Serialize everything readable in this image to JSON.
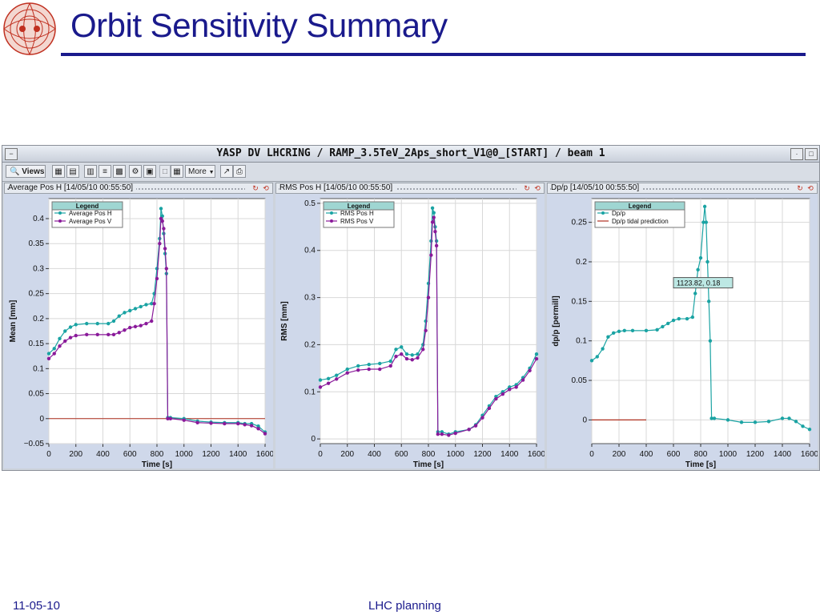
{
  "slide": {
    "title": "Orbit Sensitivity Summary",
    "footer_date": "11-05-10",
    "footer_center": "LHC planning"
  },
  "window": {
    "title": "YASP DV LHCRING / RAMP_3.5TeV_2Aps_short_V1@0_[START] / beam 1",
    "toolbar": {
      "views_label": "Views",
      "more_label": "More"
    }
  },
  "colors": {
    "teal": "#1aa3a3",
    "purple": "#8a1a9a",
    "zero_line": "#b03020",
    "title_blue": "#1a1a8c"
  },
  "chart_data": [
    {
      "type": "scatter",
      "panel_title": "Average Pos H",
      "timestamp": "[14/05/10 00:55:50]",
      "xlabel": "Time [s]",
      "ylabel": "Mean [mm]",
      "xlim": [
        0,
        1600
      ],
      "ylim": [
        -0.05,
        0.44
      ],
      "xticks": [
        0,
        200,
        400,
        600,
        800,
        1000,
        1200,
        1400,
        1600
      ],
      "yticks": [
        -0.05,
        0,
        0.05,
        0.1,
        0.15,
        0.2,
        0.25,
        0.3,
        0.35,
        0.4
      ],
      "ytick_labels": [
        "−0.05",
        "0",
        "0.05",
        "0.1",
        "0.15",
        "0.2",
        "0.25",
        "0.3",
        "0.35",
        "0.4"
      ],
      "legend": {
        "title": "Legend",
        "placement": "top-left"
      },
      "zero_line": true,
      "grid": true,
      "series": [
        {
          "name": "Average Pos H",
          "color": "#1aa3a3",
          "x": [
            0,
            40,
            80,
            120,
            160,
            200,
            280,
            360,
            440,
            480,
            520,
            560,
            600,
            640,
            680,
            720,
            760,
            780,
            800,
            820,
            830,
            840,
            850,
            860,
            870,
            880,
            900,
            1000,
            1100,
            1200,
            1300,
            1400,
            1450,
            1500,
            1550,
            1600
          ],
          "y": [
            0.13,
            0.14,
            0.16,
            0.175,
            0.183,
            0.188,
            0.19,
            0.19,
            0.19,
            0.195,
            0.205,
            0.212,
            0.216,
            0.22,
            0.224,
            0.228,
            0.23,
            0.25,
            0.3,
            0.36,
            0.42,
            0.405,
            0.37,
            0.33,
            0.29,
            0.002,
            0.002,
            0.0,
            -0.005,
            -0.007,
            -0.008,
            -0.008,
            -0.01,
            -0.01,
            -0.015,
            -0.027
          ]
        },
        {
          "name": "Average Pos V",
          "color": "#8a1a9a",
          "x": [
            0,
            40,
            80,
            120,
            160,
            200,
            280,
            360,
            440,
            480,
            520,
            560,
            600,
            640,
            680,
            720,
            760,
            780,
            800,
            820,
            830,
            840,
            850,
            860,
            870,
            880,
            900,
            1000,
            1100,
            1200,
            1300,
            1400,
            1450,
            1500,
            1550,
            1600
          ],
          "y": [
            0.12,
            0.13,
            0.145,
            0.155,
            0.162,
            0.166,
            0.168,
            0.168,
            0.168,
            0.168,
            0.172,
            0.177,
            0.182,
            0.184,
            0.186,
            0.19,
            0.195,
            0.23,
            0.28,
            0.35,
            0.4,
            0.395,
            0.38,
            0.34,
            0.3,
            0.0,
            0.0,
            -0.003,
            -0.008,
            -0.009,
            -0.01,
            -0.01,
            -0.012,
            -0.014,
            -0.02,
            -0.03
          ]
        }
      ]
    },
    {
      "type": "scatter",
      "panel_title": "RMS Pos H",
      "timestamp": "[14/05/10 00:55:50]",
      "xlabel": "Time [s]",
      "ylabel": "RMS [mm]",
      "xlim": [
        0,
        1600
      ],
      "ylim": [
        -0.01,
        0.51
      ],
      "xticks": [
        0,
        200,
        400,
        600,
        800,
        1000,
        1200,
        1400,
        1600
      ],
      "yticks": [
        0,
        0.1,
        0.2,
        0.3,
        0.4,
        0.5
      ],
      "ytick_labels": [
        "0",
        "0.1",
        "0.2",
        "0.3",
        "0.4",
        "0.5"
      ],
      "legend": {
        "title": "Legend",
        "placement": "top-left"
      },
      "zero_line": false,
      "grid": true,
      "series": [
        {
          "name": "RMS Pos H",
          "color": "#1aa3a3",
          "x": [
            0,
            60,
            120,
            200,
            280,
            360,
            440,
            520,
            560,
            600,
            640,
            680,
            720,
            760,
            780,
            800,
            820,
            830,
            840,
            850,
            860,
            870,
            900,
            950,
            1000,
            1100,
            1150,
            1200,
            1250,
            1300,
            1350,
            1400,
            1450,
            1500,
            1550,
            1600
          ],
          "y": [
            0.125,
            0.128,
            0.135,
            0.148,
            0.155,
            0.158,
            0.16,
            0.165,
            0.19,
            0.195,
            0.18,
            0.178,
            0.18,
            0.2,
            0.25,
            0.33,
            0.42,
            0.49,
            0.48,
            0.45,
            0.42,
            0.015,
            0.015,
            0.01,
            0.015,
            0.02,
            0.03,
            0.05,
            0.07,
            0.09,
            0.1,
            0.11,
            0.115,
            0.13,
            0.15,
            0.18
          ]
        },
        {
          "name": "RMS Pos V",
          "color": "#8a1a9a",
          "x": [
            0,
            60,
            120,
            200,
            280,
            360,
            440,
            520,
            560,
            600,
            640,
            680,
            720,
            760,
            780,
            800,
            820,
            830,
            840,
            850,
            860,
            870,
            900,
            950,
            1000,
            1100,
            1150,
            1200,
            1250,
            1300,
            1350,
            1400,
            1450,
            1500,
            1550,
            1600
          ],
          "y": [
            0.11,
            0.118,
            0.127,
            0.14,
            0.146,
            0.148,
            0.148,
            0.155,
            0.175,
            0.18,
            0.17,
            0.168,
            0.172,
            0.19,
            0.23,
            0.3,
            0.39,
            0.46,
            0.47,
            0.44,
            0.41,
            0.01,
            0.01,
            0.008,
            0.012,
            0.02,
            0.028,
            0.045,
            0.065,
            0.085,
            0.095,
            0.105,
            0.11,
            0.125,
            0.145,
            0.17
          ]
        }
      ]
    },
    {
      "type": "scatter",
      "panel_title": "Dp/p",
      "timestamp": "[14/05/10 00:55:50]",
      "xlabel": "Time [s]",
      "ylabel": "dp/p [permill]",
      "xlim": [
        0,
        1600
      ],
      "ylim": [
        -0.03,
        0.28
      ],
      "xticks": [
        0,
        200,
        400,
        600,
        800,
        1000,
        1200,
        1400,
        1600
      ],
      "yticks": [
        0,
        0.05,
        0.1,
        0.15,
        0.2,
        0.25
      ],
      "ytick_labels": [
        "0",
        "0.05",
        "0.1",
        "0.15",
        "0.2",
        "0.25"
      ],
      "legend": {
        "title": "Legend",
        "placement": "top-left"
      },
      "annotation": "1123.82, 0.18",
      "zero_line": false,
      "grid": true,
      "series": [
        {
          "name": "Dp/p",
          "color": "#1aa3a3",
          "x": [
            0,
            40,
            80,
            120,
            160,
            200,
            240,
            300,
            400,
            480,
            520,
            560,
            600,
            640,
            700,
            740,
            760,
            780,
            800,
            820,
            830,
            840,
            850,
            860,
            870,
            880,
            900,
            1000,
            1100,
            1200,
            1300,
            1400,
            1450,
            1500,
            1550,
            1600
          ],
          "y": [
            0.075,
            0.08,
            0.09,
            0.105,
            0.11,
            0.112,
            0.113,
            0.113,
            0.113,
            0.114,
            0.118,
            0.122,
            0.126,
            0.128,
            0.128,
            0.13,
            0.16,
            0.19,
            0.205,
            0.25,
            0.27,
            0.25,
            0.2,
            0.15,
            0.1,
            0.002,
            0.002,
            0.0,
            -0.003,
            -0.003,
            -0.002,
            0.002,
            0.002,
            -0.002,
            -0.008,
            -0.012
          ]
        },
        {
          "name": "Dp/p tidal prediction",
          "color": "#b03020",
          "x": [
            0,
            400
          ],
          "y": [
            0.0,
            0.0
          ]
        }
      ]
    }
  ]
}
